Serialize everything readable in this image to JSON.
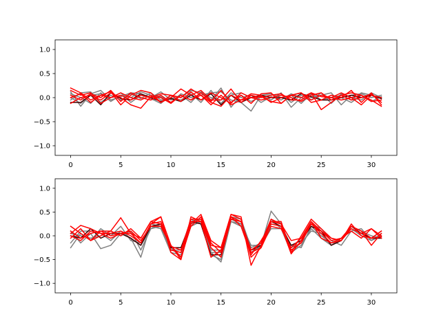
{
  "chart_data": [
    {
      "type": "line",
      "title": "",
      "xlabel": "",
      "ylabel": "",
      "xlim": [
        -1.55,
        32.55
      ],
      "ylim": [
        -1.2,
        1.2
      ],
      "xticks": [
        0,
        5,
        10,
        15,
        20,
        25,
        30
      ],
      "xtick_labels": [
        "0",
        "5",
        "10",
        "15",
        "20",
        "25",
        "30"
      ],
      "yticks": [
        -1.0,
        -0.5,
        0.0,
        0.5,
        1.0
      ],
      "ytick_labels": [
        "−1.0",
        "−0.5",
        "0.0",
        "0.5",
        "1.0"
      ],
      "grid": false,
      "x": [
        0,
        1,
        2,
        3,
        4,
        5,
        6,
        7,
        8,
        9,
        10,
        11,
        12,
        13,
        14,
        15,
        16,
        17,
        18,
        19,
        20,
        21,
        22,
        23,
        24,
        25,
        26,
        27,
        28,
        29,
        30,
        31
      ],
      "series": [
        {
          "color": "#808080",
          "values": [
            0.12,
            -0.18,
            0.08,
            0.15,
            -0.05,
            0.02,
            0.1,
            0.08,
            -0.02,
            -0.12,
            0.05,
            0.0,
            0.15,
            0.1,
            -0.05,
            0.2,
            -0.2,
            0.05,
            -0.08,
            0.02,
            0.05,
            0.08,
            -0.1,
            0.05,
            0.0,
            0.05,
            0.1,
            -0.15,
            0.05,
            0.08,
            0.0,
            0.05
          ]
        },
        {
          "color": "#808080",
          "values": [
            0.08,
            0.0,
            -0.12,
            0.1,
            -0.08,
            0.05,
            0.0,
            0.12,
            0.05,
            0.02,
            -0.1,
            0.08,
            0.0,
            0.05,
            0.1,
            0.12,
            -0.05,
            -0.1,
            -0.28,
            0.05,
            0.08,
            0.0,
            0.05,
            -0.12,
            0.08,
            -0.05,
            0.0,
            0.05,
            -0.05,
            0.1,
            0.05,
            -0.02
          ]
        },
        {
          "color": "#808080",
          "values": [
            -0.05,
            0.1,
            0.12,
            -0.1,
            0.05,
            -0.05,
            0.08,
            -0.02,
            0.1,
            -0.05,
            0.0,
            -0.05,
            0.08,
            -0.1,
            0.15,
            -0.12,
            0.1,
            0.0,
            0.05,
            -0.1,
            0.02,
            -0.05,
            0.08,
            0.0,
            -0.05,
            0.1,
            -0.12,
            0.08,
            0.0,
            -0.05,
            0.1,
            0.0
          ]
        },
        {
          "color": "#808080",
          "values": [
            0.0,
            -0.12,
            0.05,
            0.08,
            0.0,
            0.1,
            -0.1,
            0.05,
            0.0,
            0.12,
            -0.05,
            0.05,
            -0.1,
            0.12,
            0.0,
            -0.05,
            0.05,
            0.1,
            0.0,
            0.05,
            -0.05,
            0.1,
            -0.2,
            0.0,
            0.1,
            -0.05,
            0.05,
            0.0,
            -0.1,
            0.05,
            -0.08,
            0.02
          ]
        },
        {
          "color": "#400000",
          "values": [
            -0.1,
            -0.1,
            0.05,
            -0.15,
            0.1,
            -0.02,
            -0.05,
            0.08,
            0.0,
            -0.08,
            -0.02,
            -0.08,
            0.05,
            -0.05,
            0.08,
            -0.15,
            0.05,
            -0.1,
            0.0,
            0.05,
            0.0,
            0.0,
            -0.05,
            0.08,
            0.02,
            -0.05,
            -0.05,
            0.0,
            0.05,
            0.0,
            0.05,
            -0.02
          ]
        },
        {
          "color": "#ff0000",
          "values": [
            0.2,
            0.1,
            -0.05,
            0.05,
            0.12,
            -0.15,
            0.05,
            0.15,
            0.1,
            -0.1,
            0.05,
            0.0,
            0.18,
            0.05,
            -0.15,
            0.05,
            -0.15,
            -0.05,
            0.08,
            0.05,
            -0.1,
            0.0,
            0.05,
            0.1,
            -0.1,
            -0.05,
            0.05,
            0.0,
            0.15,
            -0.1,
            0.1,
            -0.15
          ]
        },
        {
          "color": "#ff0000",
          "values": [
            0.15,
            0.05,
            0.1,
            -0.12,
            0.0,
            0.1,
            0.0,
            -0.05,
            0.05,
            -0.1,
            0.0,
            0.18,
            0.05,
            0.15,
            -0.05,
            -0.05,
            0.18,
            -0.1,
            0.05,
            0.0,
            0.05,
            0.08,
            -0.05,
            -0.05,
            0.1,
            -0.25,
            -0.1,
            0.05,
            0.1,
            0.05,
            -0.08,
            -0.05
          ]
        },
        {
          "color": "#ff0000",
          "values": [
            0.05,
            -0.05,
            0.08,
            0.0,
            0.15,
            -0.08,
            0.1,
            0.0,
            -0.05,
            0.05,
            -0.1,
            0.05,
            -0.05,
            0.1,
            -0.08,
            0.15,
            -0.1,
            0.05,
            -0.12,
            0.08,
            0.1,
            -0.12,
            0.05,
            0.1,
            -0.05,
            0.05,
            0.0,
            -0.05,
            0.0,
            -0.15,
            0.05,
            0.0
          ]
        },
        {
          "color": "#ff0000",
          "values": [
            0.0,
            0.08,
            -0.1,
            0.05,
            0.0,
            0.05,
            -0.05,
            0.05,
            0.0,
            0.08,
            0.05,
            -0.08,
            0.12,
            -0.05,
            0.1,
            0.0,
            -0.12,
            0.1,
            0.0,
            -0.05,
            0.0,
            0.05,
            0.0,
            -0.08,
            0.05,
            0.1,
            -0.05,
            0.05,
            -0.05,
            0.0,
            0.08,
            -0.1
          ]
        },
        {
          "color": "#ff0000",
          "values": [
            -0.12,
            0.0,
            0.05,
            -0.05,
            0.1,
            0.0,
            -0.15,
            -0.22,
            0.02,
            0.0,
            -0.12,
            0.05,
            -0.05,
            0.05,
            -0.1,
            -0.18,
            0.05,
            -0.05,
            0.0,
            0.02,
            -0.08,
            -0.12,
            0.05,
            0.0,
            0.1,
            0.02,
            0.0,
            0.1,
            0.0,
            0.05,
            -0.05,
            -0.18
          ]
        }
      ]
    },
    {
      "type": "line",
      "title": "",
      "xlabel": "",
      "ylabel": "",
      "xlim": [
        -1.55,
        32.55
      ],
      "ylim": [
        -1.2,
        1.2
      ],
      "xticks": [
        0,
        5,
        10,
        15,
        20,
        25,
        30
      ],
      "xtick_labels": [
        "0",
        "5",
        "10",
        "15",
        "20",
        "25",
        "30"
      ],
      "yticks": [
        -1.0,
        -0.5,
        0.0,
        0.5,
        1.0
      ],
      "ytick_labels": [
        "−1.0",
        "−0.5",
        "0.0",
        "0.5",
        "1.0"
      ],
      "grid": false,
      "x": [
        0,
        1,
        2,
        3,
        4,
        5,
        6,
        7,
        8,
        9,
        10,
        11,
        12,
        13,
        14,
        15,
        16,
        17,
        18,
        19,
        20,
        21,
        22,
        23,
        24,
        25,
        26,
        27,
        28,
        29,
        30,
        31
      ],
      "series": [
        {
          "color": "#808080",
          "values": [
            -0.25,
            0.05,
            -0.1,
            0.15,
            0.0,
            0.2,
            -0.1,
            -0.15,
            0.2,
            0.15,
            -0.35,
            -0.4,
            0.3,
            0.35,
            -0.35,
            -0.55,
            0.3,
            0.25,
            -0.2,
            -0.2,
            0.52,
            0.25,
            -0.25,
            -0.15,
            0.25,
            0.15,
            -0.1,
            -0.2,
            0.1,
            0.15,
            -0.1,
            0.05
          ]
        },
        {
          "color": "#808080",
          "values": [
            0.1,
            -0.15,
            0.05,
            -0.27,
            -0.2,
            0.05,
            -0.05,
            -0.45,
            0.25,
            0.2,
            -0.3,
            -0.3,
            0.35,
            0.25,
            -0.4,
            -0.5,
            0.4,
            0.35,
            -0.25,
            -0.15,
            0.35,
            0.15,
            -0.2,
            -0.25,
            0.2,
            0.0,
            -0.15,
            -0.05,
            0.15,
            0.05,
            -0.05,
            0.1
          ]
        },
        {
          "color": "#808080",
          "values": [
            -0.15,
            0.1,
            0.1,
            0.05,
            -0.1,
            0.1,
            -0.05,
            -0.2,
            0.15,
            0.2,
            -0.3,
            -0.35,
            0.25,
            0.3,
            -0.35,
            -0.35,
            0.35,
            0.25,
            -0.3,
            -0.25,
            0.25,
            0.2,
            -0.3,
            -0.15,
            0.1,
            0.05,
            -0.2,
            -0.1,
            0.2,
            0.1,
            0.0,
            -0.05
          ]
        },
        {
          "color": "#808080",
          "values": [
            0.05,
            0.0,
            -0.05,
            0.0,
            0.1,
            0.0,
            0.1,
            -0.3,
            0.15,
            0.25,
            -0.25,
            -0.45,
            0.2,
            0.3,
            -0.3,
            -0.3,
            0.3,
            0.2,
            -0.35,
            -0.2,
            0.15,
            0.15,
            -0.35,
            -0.2,
            0.15,
            -0.05,
            -0.2,
            -0.05,
            0.15,
            0.0,
            -0.1,
            0.0
          ]
        },
        {
          "color": "#400000",
          "values": [
            0.0,
            -0.05,
            0.15,
            -0.05,
            0.05,
            0.05,
            -0.05,
            -0.2,
            0.2,
            0.25,
            -0.25,
            -0.25,
            0.3,
            0.25,
            -0.4,
            -0.4,
            0.35,
            0.3,
            -0.3,
            -0.2,
            0.3,
            0.2,
            -0.2,
            -0.1,
            0.2,
            0.1,
            -0.2,
            -0.1,
            0.2,
            0.05,
            -0.05,
            -0.05
          ]
        },
        {
          "color": "#ff0000",
          "values": [
            0.2,
            0.05,
            -0.1,
            0.1,
            0.1,
            0.38,
            0.05,
            -0.05,
            0.3,
            0.4,
            -0.2,
            -0.5,
            0.4,
            0.3,
            -0.45,
            -0.3,
            0.45,
            0.4,
            -0.62,
            -0.2,
            0.3,
            0.3,
            -0.35,
            0.0,
            0.35,
            0.15,
            -0.05,
            -0.1,
            0.25,
            0.0,
            -0.05,
            0.1
          ]
        },
        {
          "color": "#ff0000",
          "values": [
            0.05,
            0.22,
            0.15,
            0.05,
            0.05,
            0.1,
            0.0,
            -0.15,
            0.25,
            0.4,
            -0.35,
            -0.5,
            0.25,
            0.45,
            -0.1,
            -0.25,
            0.45,
            0.35,
            -0.45,
            -0.25,
            0.3,
            0.25,
            -0.3,
            -0.15,
            0.25,
            0.05,
            -0.15,
            -0.1,
            0.2,
            0.1,
            -0.2,
            0.05
          ]
        },
        {
          "color": "#ff0000",
          "values": [
            -0.05,
            0.15,
            -0.1,
            0.0,
            0.1,
            0.0,
            0.15,
            -0.05,
            0.3,
            0.25,
            -0.2,
            -0.45,
            0.2,
            0.4,
            -0.15,
            -0.35,
            0.4,
            0.2,
            -0.4,
            -0.1,
            0.25,
            0.2,
            -0.38,
            -0.1,
            0.3,
            0.1,
            -0.05,
            -0.1,
            0.15,
            0.05,
            0.15,
            0.0
          ]
        },
        {
          "color": "#ff0000",
          "values": [
            0.0,
            -0.1,
            0.1,
            0.05,
            -0.05,
            0.05,
            0.1,
            -0.1,
            0.2,
            0.2,
            -0.22,
            -0.3,
            0.35,
            0.35,
            -0.2,
            -0.25,
            0.4,
            0.3,
            -0.3,
            -0.15,
            0.35,
            0.25,
            -0.1,
            -0.05,
            0.25,
            0.1,
            -0.1,
            -0.05,
            0.1,
            -0.05,
            0.15,
            -0.05
          ]
        },
        {
          "color": "#ff0000",
          "values": [
            0.1,
            -0.05,
            0.05,
            0.1,
            0.0,
            0.05,
            0.05,
            -0.15,
            0.25,
            0.3,
            -0.3,
            -0.35,
            0.3,
            0.3,
            -0.25,
            -0.45,
            0.35,
            0.3,
            -0.35,
            -0.25,
            0.2,
            0.15,
            -0.25,
            -0.05,
            0.3,
            -0.05,
            -0.15,
            -0.05,
            0.2,
            0.1,
            -0.05,
            -0.02
          ]
        }
      ]
    }
  ]
}
